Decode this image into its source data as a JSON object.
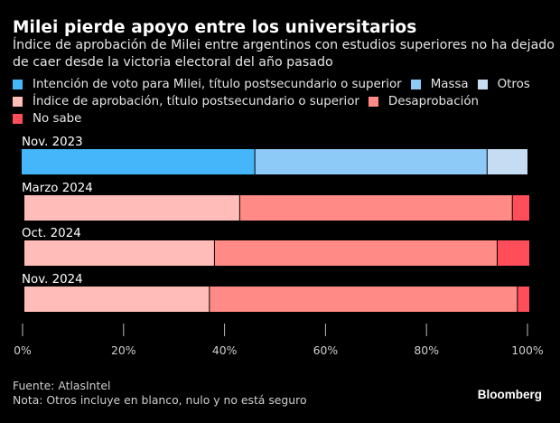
{
  "header": {
    "title": "Milei pierde apoyo entre los universitarios",
    "subtitle": "Índice de aprobación de Milei entre argentinos con estudios superiores no ha dejado de caer desde la victoria electoral del año pasado"
  },
  "legend": {
    "rows": [
      [
        {
          "label": "Intención de voto para Milei, título postsecundario o superior",
          "color": "#44b6f9"
        },
        {
          "label": "Massa",
          "color": "#8dcaf7"
        },
        {
          "label": "Otros",
          "color": "#c6dcf2"
        }
      ],
      [
        {
          "label": "Índice de aprobación, título postsecundario o superior",
          "color": "#ffbcb9"
        },
        {
          "label": "Desaprobación",
          "color": "#ff8a86"
        }
      ],
      [
        {
          "label": "No sabe",
          "color": "#ff4d5a"
        }
      ]
    ]
  },
  "chart_data": {
    "type": "bar",
    "orientation": "horizontal",
    "stacked": true,
    "title": "Milei pierde apoyo entre los universitarios",
    "xlabel": "",
    "ylabel": "",
    "xlim": [
      0,
      100
    ],
    "x_ticks": [
      "0%",
      "20%",
      "40%",
      "60%",
      "80%",
      "100%"
    ],
    "x_tick_values": [
      0,
      20,
      40,
      60,
      80,
      100
    ],
    "grid": false,
    "legend_position": "top",
    "categories": [
      "Nov. 2023",
      "Marzo 2024",
      "Oct. 2024",
      "Nov. 2024"
    ],
    "bars": [
      {
        "category": "Nov. 2023",
        "segments": [
          {
            "name": "Intención de voto para Milei, título postsecundario o superior",
            "value": 46,
            "color": "#44b6f9"
          },
          {
            "name": "Massa",
            "value": 46,
            "color": "#8dcaf7"
          },
          {
            "name": "Otros",
            "value": 8,
            "color": "#c6dcf2"
          }
        ]
      },
      {
        "category": "Marzo 2024",
        "segments": [
          {
            "name": "Índice de aprobación, título postsecundario o superior",
            "value": 43,
            "color": "#ffbcb9"
          },
          {
            "name": "Desaprobación",
            "value": 54,
            "color": "#ff8a86"
          },
          {
            "name": "No sabe",
            "value": 3,
            "color": "#ff4d5a"
          }
        ]
      },
      {
        "category": "Oct. 2024",
        "segments": [
          {
            "name": "Índice de aprobación, título postsecundario o superior",
            "value": 38,
            "color": "#ffbcb9"
          },
          {
            "name": "Desaprobación",
            "value": 56,
            "color": "#ff8a86"
          },
          {
            "name": "No sabe",
            "value": 6,
            "color": "#ff4d5a"
          }
        ]
      },
      {
        "category": "Nov. 2024",
        "segments": [
          {
            "name": "Índice de aprobación, título postsecundario o superior",
            "value": 37,
            "color": "#ffbcb9"
          },
          {
            "name": "Desaprobación",
            "value": 61,
            "color": "#ff8a86"
          },
          {
            "name": "No sabe",
            "value": 2,
            "color": "#ff4d5a"
          }
        ]
      }
    ]
  },
  "footer": {
    "source": "Fuente: AtlasIntel",
    "note": "Nota: Otros incluye en blanco, nulo y no está seguro",
    "brand": "Bloomberg"
  }
}
